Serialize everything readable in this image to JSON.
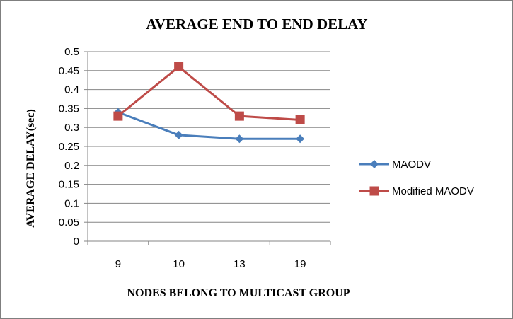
{
  "chart_data": {
    "type": "line",
    "title": "AVERAGE END TO END DELAY",
    "xlabel": "NODES BELONG TO MULTICAST GROUP",
    "ylabel": "AVERAGE DELAY(sec)",
    "categories": [
      "9",
      "10",
      "13",
      "19"
    ],
    "ylim": [
      0,
      0.5
    ],
    "yticks": [
      0,
      0.05,
      0.1,
      0.15,
      0.2,
      0.25,
      0.3,
      0.35,
      0.4,
      0.45,
      0.5
    ],
    "ytick_labels": [
      "0",
      "0.05",
      "0.1",
      "0.15",
      "0.2",
      "0.25",
      "0.3",
      "0.35",
      "0.4",
      "0.45",
      "0.5"
    ],
    "grid": true,
    "legend_position": "right",
    "series": [
      {
        "name": "MAODV",
        "values": [
          0.34,
          0.28,
          0.27,
          0.27
        ],
        "color": "#4a7ebb",
        "marker": "diamond"
      },
      {
        "name": "Modified MAODV",
        "values": [
          0.33,
          0.46,
          0.33,
          0.32
        ],
        "color": "#be4b48",
        "marker": "square"
      }
    ]
  }
}
